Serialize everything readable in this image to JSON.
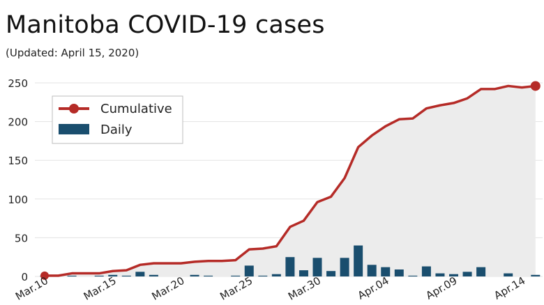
{
  "title": "Manitoba COVID-19 cases",
  "subtitle": "(Updated: April 15, 2020)",
  "colors": {
    "cumulative": "#b52b27",
    "daily": "#1a4e6e",
    "area": "#ececec",
    "grid": "#e3e3e3"
  },
  "chart_data": {
    "type": "line",
    "categories": [
      "Mar.10",
      "Mar.11",
      "Mar.12",
      "Mar.13",
      "Mar.14",
      "Mar.15",
      "Mar.16",
      "Mar.17",
      "Mar.18",
      "Mar.19",
      "Mar.20",
      "Mar.21",
      "Mar.22",
      "Mar.23",
      "Mar.24",
      "Mar.25",
      "Mar.26",
      "Mar.27",
      "Mar.28",
      "Mar.29",
      "Mar.30",
      "Mar.31",
      "Apr.01",
      "Apr.02",
      "Apr.03",
      "Apr.04",
      "Apr.05",
      "Apr.06",
      "Apr.07",
      "Apr.08",
      "Apr.09",
      "Apr.10",
      "Apr.11",
      "Apr.12",
      "Apr.13",
      "Apr.14",
      "Apr.15"
    ],
    "x_tick_labels": [
      "Mar.10",
      "Mar.15",
      "Mar.20",
      "Mar.25",
      "Mar.30",
      "Apr.04",
      "Apr.09",
      "Apr.14"
    ],
    "series": [
      {
        "name": "Cumulative",
        "kind": "line",
        "values": [
          1,
          1,
          4,
          4,
          4,
          7,
          8,
          15,
          17,
          17,
          17,
          19,
          20,
          20,
          21,
          35,
          36,
          39,
          64,
          72,
          96,
          103,
          127,
          167,
          182,
          194,
          203,
          204,
          217,
          221,
          224,
          230,
          242,
          242,
          246,
          244,
          246
        ]
      },
      {
        "name": "Daily",
        "kind": "bar",
        "values": [
          1,
          0,
          1,
          0,
          1,
          2,
          1,
          6,
          2,
          0,
          0,
          2,
          1,
          0,
          1,
          14,
          1,
          3,
          25,
          8,
          24,
          7,
          24,
          40,
          15,
          12,
          9,
          1,
          13,
          4,
          3,
          6,
          12,
          0,
          4,
          0,
          2
        ]
      }
    ],
    "ylim": [
      0,
      250
    ],
    "y_ticks": [
      0,
      50,
      100,
      150,
      200,
      250
    ],
    "grid": true,
    "legend": "top-left"
  }
}
